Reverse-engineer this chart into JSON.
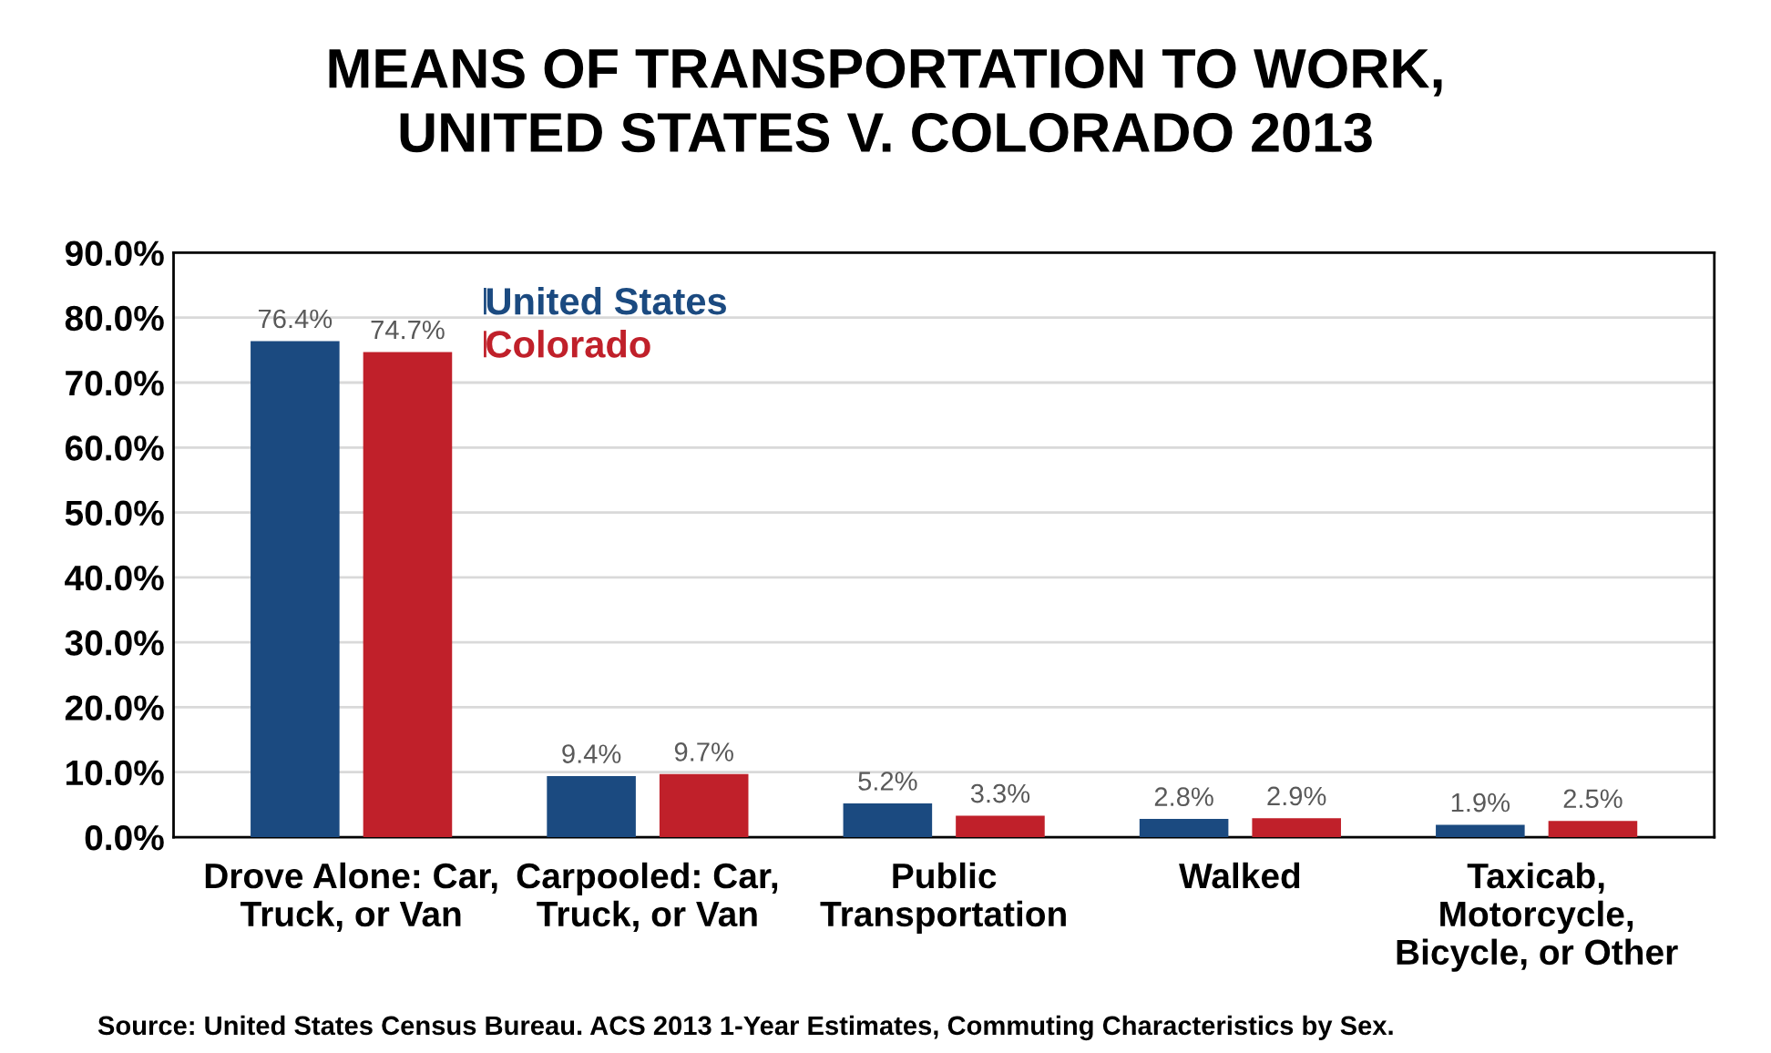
{
  "chart_data": {
    "type": "bar",
    "title": "MEANS OF TRANSPORTATION TO WORK,\nUNITED STATES V. COLORADO 2013",
    "categories": [
      "Drove Alone: Car,\nTruck, or Van",
      "Carpooled: Car,\nTruck, or Van",
      "Public\nTransportation",
      "Walked",
      "Taxicab,\nMotorcycle,\nBicycle, or Other"
    ],
    "series": [
      {
        "name": "United States",
        "color": "#1b4a80",
        "values": [
          76.4,
          9.4,
          5.2,
          2.8,
          1.9
        ],
        "value_labels": [
          "76.4%",
          "9.4%",
          "5.2%",
          "2.8%",
          "1.9%"
        ]
      },
      {
        "name": "Colorado",
        "color": "#c0202a",
        "values": [
          74.7,
          9.7,
          3.3,
          2.9,
          2.5
        ],
        "value_labels": [
          "74.7%",
          "9.7%",
          "3.3%",
          "2.9%",
          "2.5%"
        ]
      }
    ],
    "ylim": [
      0,
      90
    ],
    "yticks": [
      {
        "value": 0,
        "label": "0.0%"
      },
      {
        "value": 10,
        "label": "10.0%"
      },
      {
        "value": 20,
        "label": "20.0%"
      },
      {
        "value": 30,
        "label": "30.0%"
      },
      {
        "value": 40,
        "label": "40.0%"
      },
      {
        "value": 50,
        "label": "50.0%"
      },
      {
        "value": 60,
        "label": "60.0%"
      },
      {
        "value": 70,
        "label": "70.0%"
      },
      {
        "value": 80,
        "label": "80.0%"
      },
      {
        "value": 90,
        "label": "90.0%"
      }
    ],
    "grid": "y",
    "legend": "top left",
    "annotations": [
      "Source: United States Census Bureau. ACS 2013 1-Year Estimates, Commuting Characteristics by Sex."
    ]
  }
}
